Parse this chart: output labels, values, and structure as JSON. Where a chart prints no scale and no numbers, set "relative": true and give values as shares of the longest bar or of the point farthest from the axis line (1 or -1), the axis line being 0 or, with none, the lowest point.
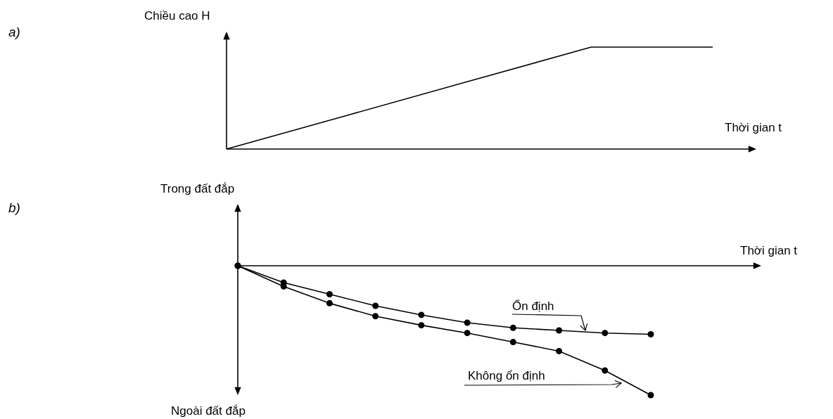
{
  "chart_data": [
    {
      "type": "line",
      "annotations": [
        "a)"
      ],
      "ylabel": "Chiều cao H",
      "xlabel": "Thời gian t",
      "relative": true,
      "categories": [
        null,
        null,
        null,
        null,
        null
      ],
      "series": [
        {
          "color": "#000000",
          "values": [
            0,
            0.333,
            0.667,
            1,
            1
          ]
        }
      ],
      "marker": "none",
      "line_style": "solid"
    },
    {
      "type": "line",
      "annotations": [
        "b)",
        "Ngoài đất đắp"
      ],
      "ylabel": "Trong đất đắp",
      "xlabel": "Thời gian t",
      "relative": true,
      "categories": [
        null,
        null,
        null,
        null,
        null,
        null,
        null,
        null,
        null,
        null
      ],
      "series": [
        {
          "name": "Ổn định",
          "color": "#000000",
          "values": [
            0,
            -0.13,
            -0.22,
            -0.31,
            -0.38,
            -0.44,
            -0.48,
            -0.5,
            -0.52,
            -0.53
          ]
        },
        {
          "name": "Không ổn định",
          "color": "#000000",
          "values": [
            0,
            -0.16,
            -0.29,
            -0.39,
            -0.46,
            -0.52,
            -0.59,
            -0.66,
            -0.81,
            -1
          ]
        }
      ],
      "marker": "circle",
      "line_style": "solid"
    }
  ]
}
